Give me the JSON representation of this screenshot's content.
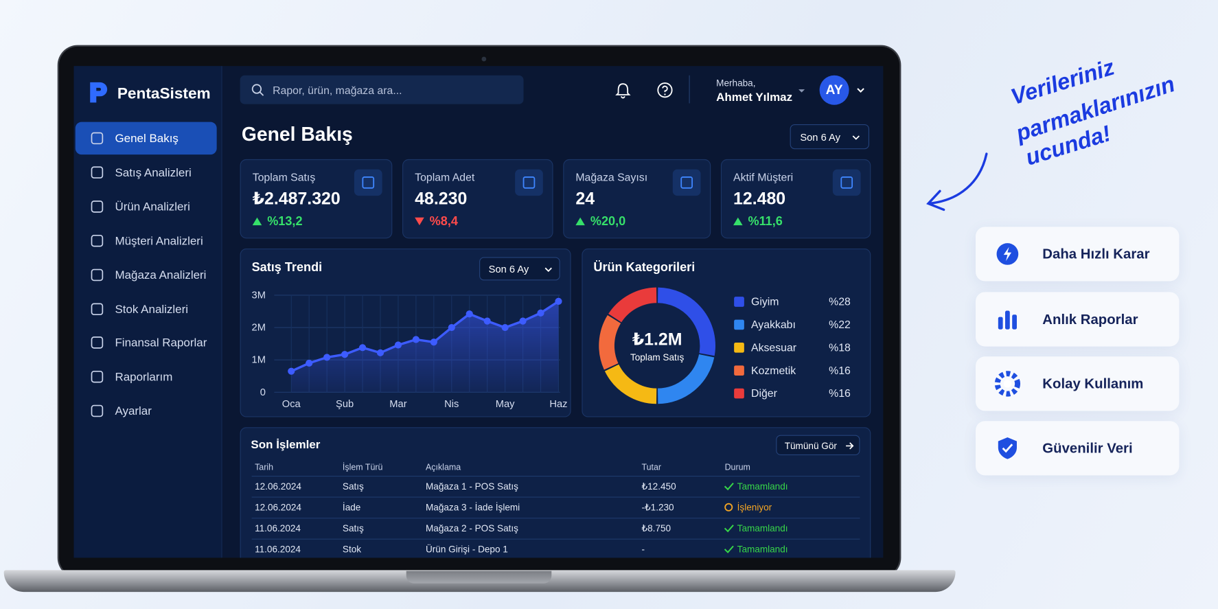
{
  "brand": "PentaSistem",
  "search_placeholder": "Rapor, ürün, mağaza ara...",
  "user": {
    "greeting": "Merhaba,",
    "name": "Ahmet Yılmaz",
    "initials": "AY"
  },
  "nav": [
    "Genel Bakış",
    "Satış Analizleri",
    "Ürün Analizleri",
    "Müşteri Analizleri",
    "Mağaza Analizleri",
    "Stok Analizleri",
    "Finansal Raporlar",
    "Raporlarım",
    "Ayarlar"
  ],
  "page": {
    "title": "Genel Bakış",
    "period": "Son 6 Ay"
  },
  "kpis": [
    {
      "label": "Toplam Satış",
      "value": "₺2.487.320",
      "change": "%13,2",
      "trend": "up"
    },
    {
      "label": "Toplam Adet",
      "value": "48.230",
      "change": "%8,4",
      "trend": "down"
    },
    {
      "label": "Mağaza Sayısı",
      "value": "24",
      "change": "%20,0",
      "trend": "up"
    },
    {
      "label": "Aktif Müşteri",
      "value": "12.480",
      "change": "%11,6",
      "trend": "up"
    }
  ],
  "chart_data": [
    {
      "type": "line",
      "title": "Satış Trendi",
      "filter": "Son 6 Ay",
      "categories": [
        "Oca",
        null,
        null,
        "Şub",
        null,
        null,
        "Mar",
        null,
        null,
        "Nis",
        null,
        null,
        "May",
        null,
        null,
        "Haz"
      ],
      "values": [
        650000,
        900000,
        1080000,
        1170000,
        1380000,
        1220000,
        1460000,
        1630000,
        1550000,
        2000000,
        2420000,
        2200000,
        2000000,
        2200000,
        2450000,
        2810000
      ],
      "color": "#3d5cff",
      "ylim": [
        0,
        3000000
      ],
      "yticks": [
        0,
        {
          "value": 1000000,
          "label": "1M"
        },
        {
          "value": 2000000,
          "label": "2M"
        },
        {
          "value": 3000000,
          "label": "3M"
        }
      ],
      "grid": true
    },
    {
      "type": "pie",
      "title": "Ürün Kategorileri",
      "center_value": "₺1.2M",
      "center_label": "Toplam Satış",
      "categories": [
        "Giyim",
        "Ayakkabı",
        "Aksesuar",
        "Kozmetik",
        "Diğer"
      ],
      "values": [
        28,
        22,
        18,
        16,
        16
      ],
      "value_labels": [
        "%28",
        "%22",
        "%18",
        "%16",
        "%16"
      ],
      "colors": [
        "#2f4fe8",
        "#2f86f0",
        "#f5b914",
        "#f26a3d",
        "#e93b3b"
      ]
    }
  ],
  "transactions": {
    "title": "Son İşlemler",
    "button": "Tümünü Gör",
    "columns": [
      "Tarih",
      "İşlem Türü",
      "Açıklama",
      "Tutar",
      "Durum"
    ],
    "rows": [
      {
        "cells": [
          "12.06.2024",
          "Satış",
          "Mağaza 1 - POS Satış",
          "₺12.450",
          "Tamamlandı"
        ],
        "icon": "check",
        "status_color": "#37d648"
      },
      {
        "cells": [
          "12.06.2024",
          "İade",
          "Mağaza 3 - İade İşlemi",
          "-₺1.230",
          "İşleniyor"
        ],
        "icon": "circle",
        "status_color": "#f5a623"
      },
      {
        "cells": [
          "11.06.2024",
          "Satış",
          "Mağaza 2 - POS Satış",
          "₺8.750",
          "Tamamlandı"
        ],
        "icon": "check",
        "status_color": "#37d648"
      },
      {
        "cells": [
          "11.06.2024",
          "Stok",
          "Ürün Girişi - Depo 1",
          "-",
          "Tamamlandı"
        ],
        "icon": "check",
        "status_color": "#37d648"
      }
    ]
  },
  "tagline": [
    "Verileriniz",
    "parmaklarınızın",
    "ucunda!"
  ],
  "features": [
    "Daha Hızlı Karar",
    "Anlık Raporlar",
    "Kolay Kullanım",
    "Güvenilir Veri"
  ]
}
